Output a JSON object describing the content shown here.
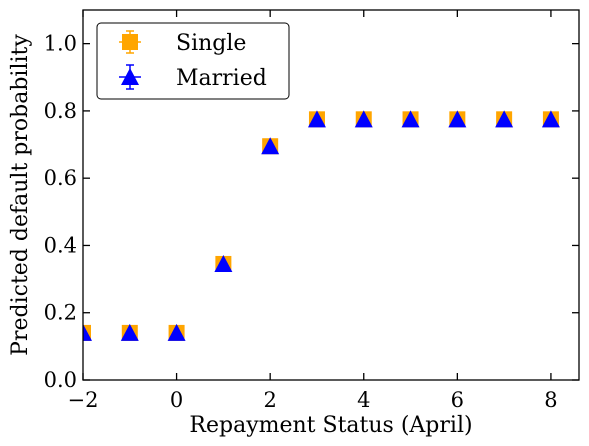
{
  "chart_data": {
    "type": "scatter",
    "title": "",
    "xlabel": "Repayment Status (April)",
    "ylabel": "Predicted default probability",
    "xlim": [
      -2,
      8.6
    ],
    "ylim": [
      0,
      1.1
    ],
    "xticks": [
      -2,
      0,
      2,
      4,
      6,
      8
    ],
    "yticks": [
      0.0,
      0.2,
      0.4,
      0.6,
      0.8,
      1.0
    ],
    "ytick_labels": [
      "0.0",
      "0.2",
      "0.4",
      "0.6",
      "0.8",
      "1.0"
    ],
    "xtick_labels": [
      "−2",
      "0",
      "2",
      "4",
      "6",
      "8"
    ],
    "grid": false,
    "legend_position": "top-left",
    "series": [
      {
        "name": "Single",
        "marker": "square",
        "color": "#FFA500",
        "x": [
          -2,
          -1,
          0,
          1,
          2,
          3,
          4,
          5,
          6,
          7,
          8
        ],
        "y": [
          0.14,
          0.14,
          0.14,
          0.345,
          0.695,
          0.775,
          0.775,
          0.775,
          0.775,
          0.775,
          0.775
        ]
      },
      {
        "name": "Married",
        "marker": "triangle",
        "color": "#0000FF",
        "x": [
          -2,
          -1,
          0,
          1,
          2,
          3,
          4,
          5,
          6,
          7,
          8
        ],
        "y": [
          0.14,
          0.14,
          0.14,
          0.345,
          0.695,
          0.775,
          0.775,
          0.775,
          0.775,
          0.775,
          0.775
        ]
      }
    ]
  }
}
